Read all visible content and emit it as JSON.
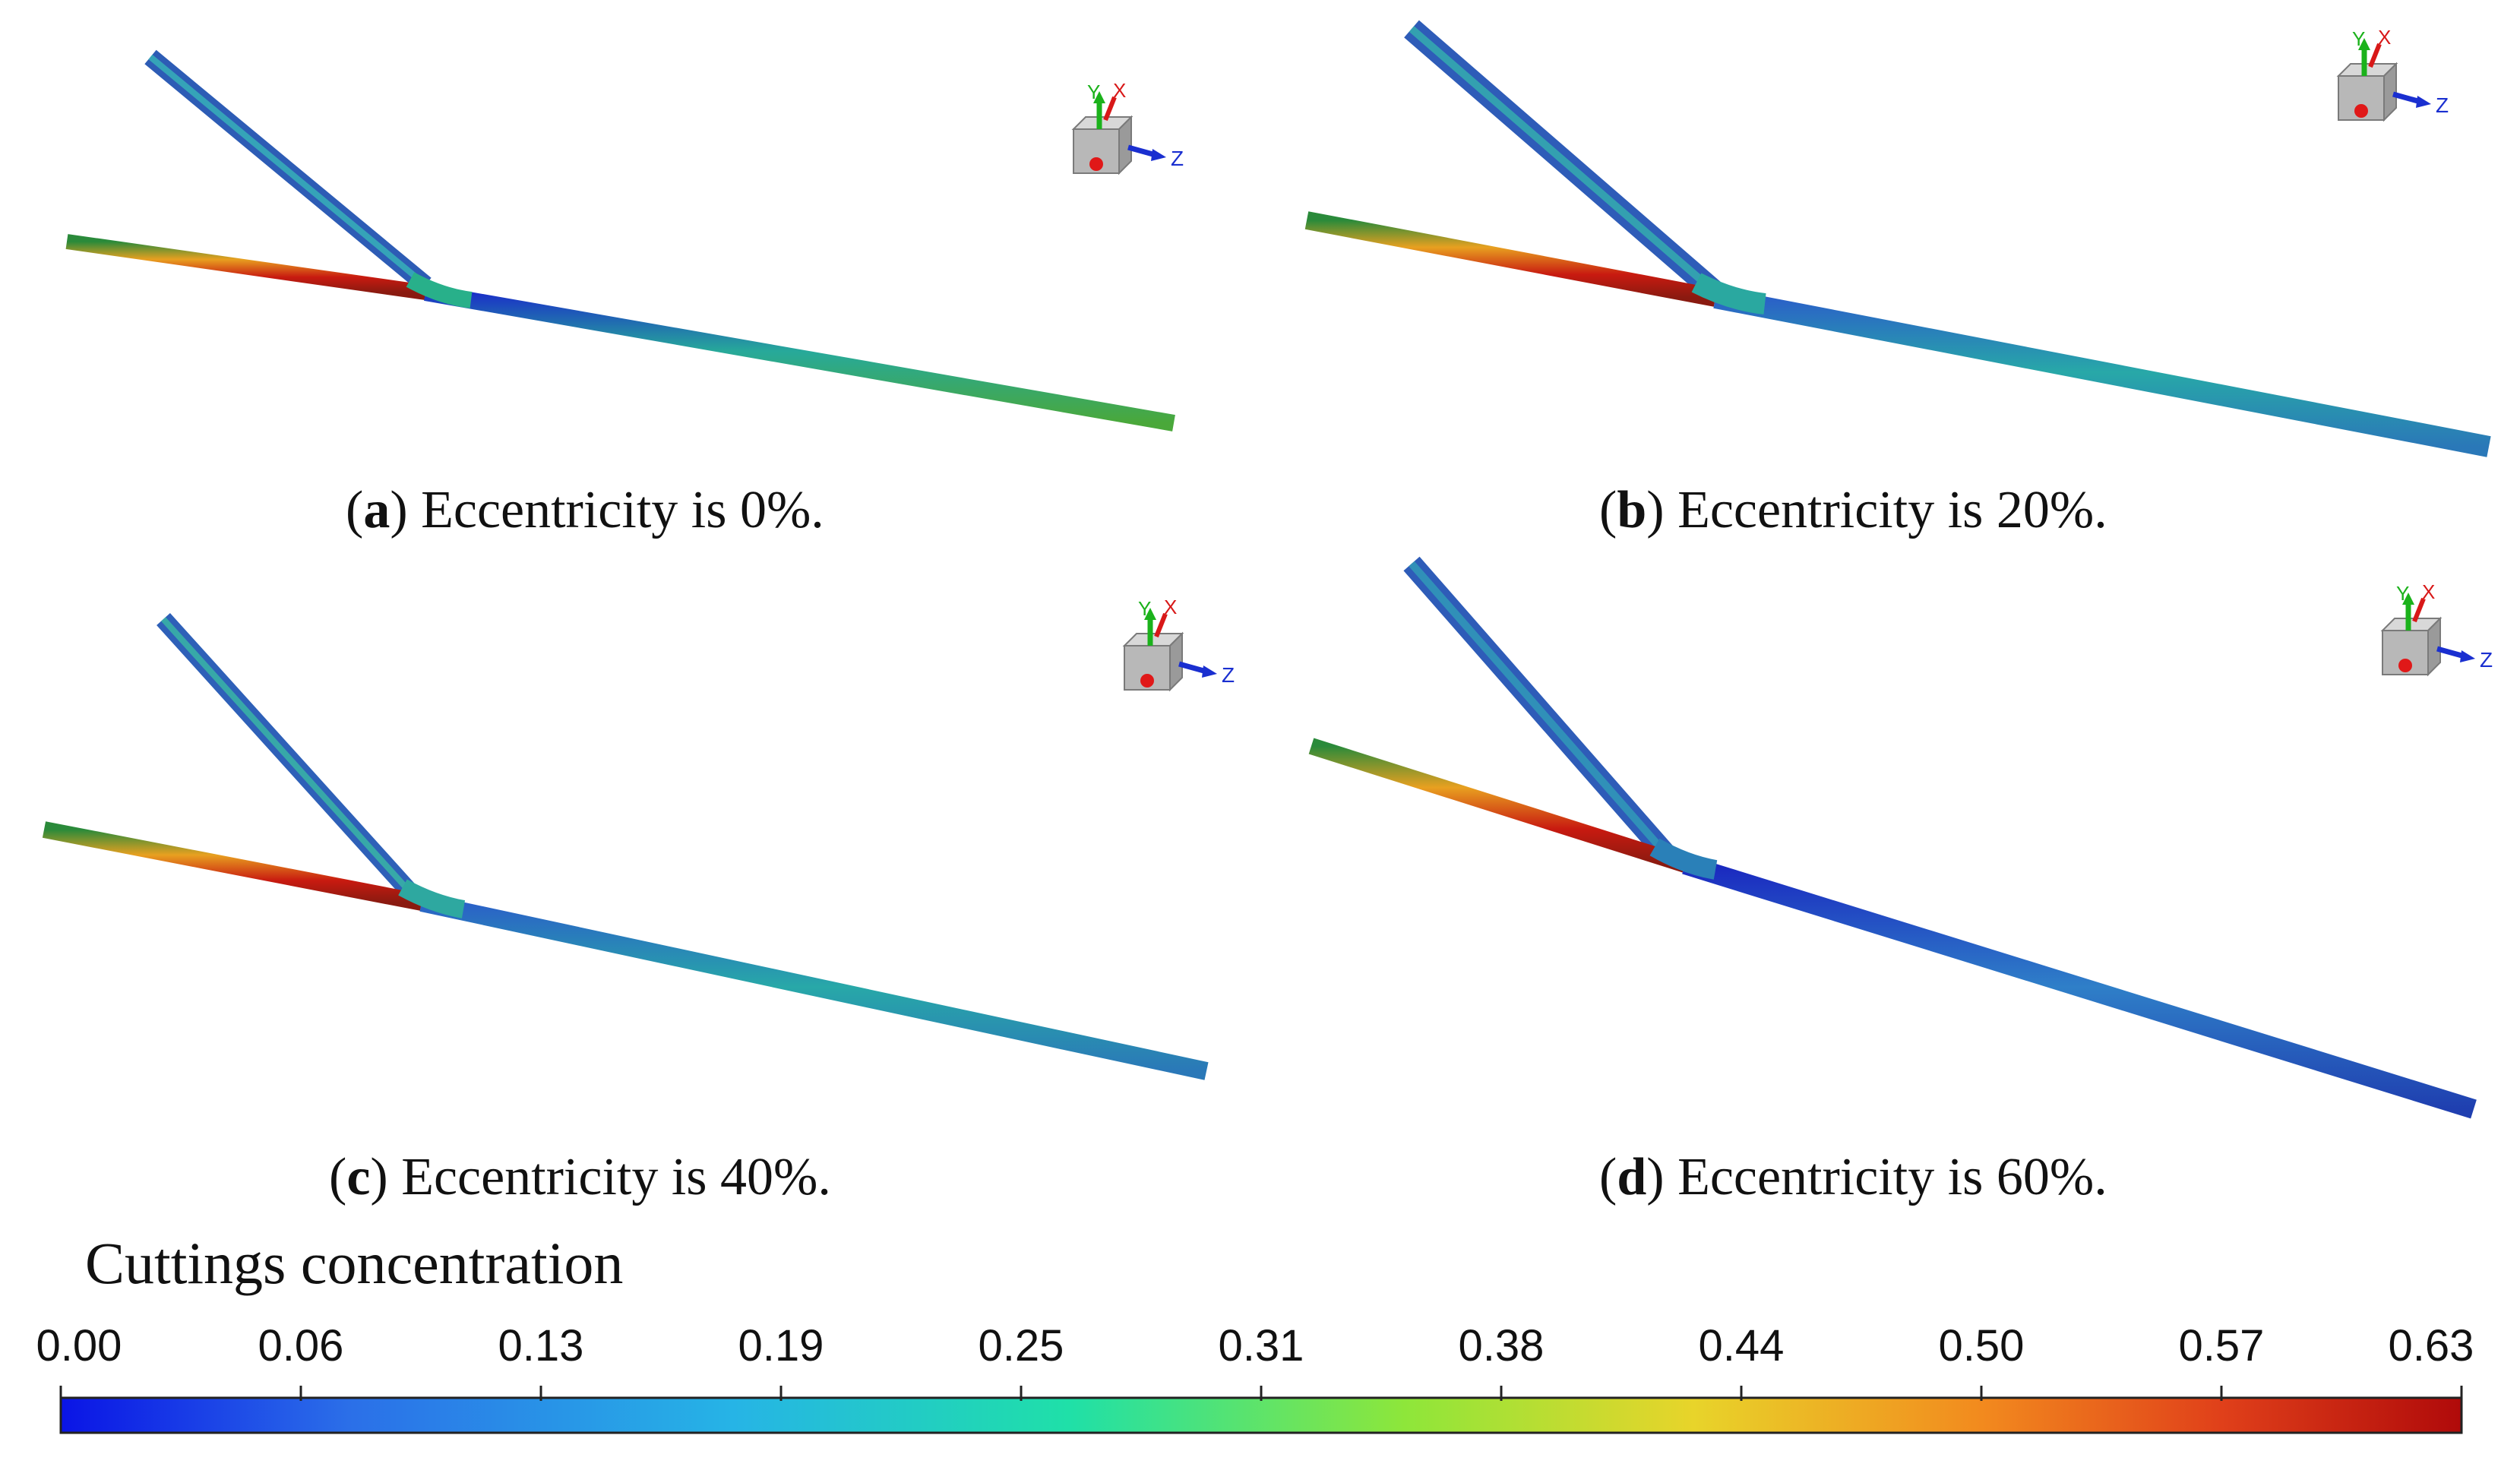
{
  "figure": {
    "panels": [
      {
        "id": "a",
        "letter": "a",
        "caption": "Eccentricity is 0%."
      },
      {
        "id": "b",
        "letter": "b",
        "caption": "Eccentricity is 20%."
      },
      {
        "id": "c",
        "letter": "c",
        "caption": "Eccentricity is 40%."
      },
      {
        "id": "d",
        "letter": "d",
        "caption": "Eccentricity is 60%."
      }
    ],
    "triad": {
      "x_label": "X",
      "y_label": "Y",
      "z_label": "Z"
    }
  },
  "colorbar": {
    "title": "Cuttings concentration",
    "ticks": [
      "0.00",
      "0.06",
      "0.13",
      "0.19",
      "0.25",
      "0.31",
      "0.38",
      "0.44",
      "0.50",
      "0.57",
      "0.63"
    ],
    "colors": {
      "low": "#0a14e6",
      "c1": "#2b6fe8",
      "c2": "#26b4e6",
      "c3": "#1fe0a8",
      "c4": "#8ee63a",
      "c5": "#e8d42a",
      "c6": "#f28a1e",
      "c7": "#e0401a",
      "high": "#b00a0a"
    }
  }
}
